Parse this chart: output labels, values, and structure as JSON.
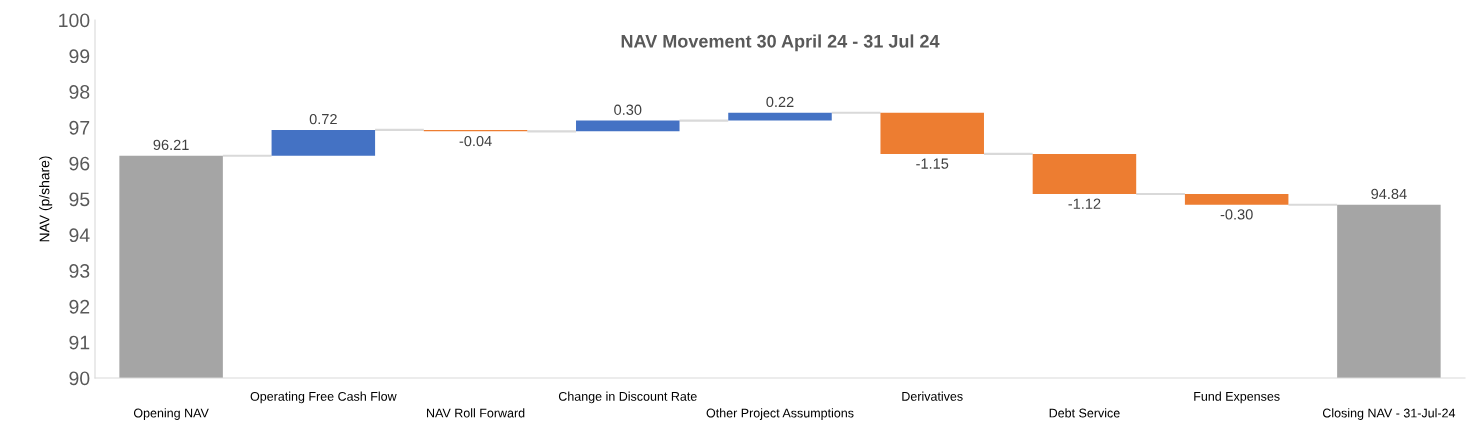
{
  "chart_data": {
    "type": "bar",
    "title": "NAV Movement 30 April 24 - 31 Jul 24",
    "ylabel": "NAV (p/share)",
    "categories": [
      "Opening NAV",
      "Operating Free Cash Flow",
      "NAV Roll Forward",
      "Change in Discount Rate",
      "Other Project Assumptions",
      "Derivatives",
      "Debt Service",
      "Fund Expenses",
      "Closing NAV - 31-Jul-24"
    ],
    "values": [
      96.21,
      0.72,
      -0.04,
      0.3,
      0.22,
      -1.15,
      -1.12,
      -0.3,
      94.84
    ],
    "base": [
      0,
      96.21,
      96.93,
      96.89,
      97.19,
      97.41,
      96.26,
      95.14,
      0
    ],
    "colors": [
      "#a5a5a5",
      "#4472c4",
      "#ed7d31",
      "#4472c4",
      "#4472c4",
      "#ed7d31",
      "#ed7d31",
      "#ed7d31",
      "#a5a5a5"
    ],
    "value_labels": [
      "96.21",
      "0.72",
      "-0.04",
      "0.30",
      "0.22",
      "-1.15",
      "-1.12",
      "-0.30",
      "94.84"
    ],
    "ylim": [
      90,
      100
    ],
    "yticks": [
      90,
      91,
      92,
      93,
      94,
      95,
      96,
      97,
      98,
      99,
      100
    ],
    "grid": false,
    "legend": false
  }
}
